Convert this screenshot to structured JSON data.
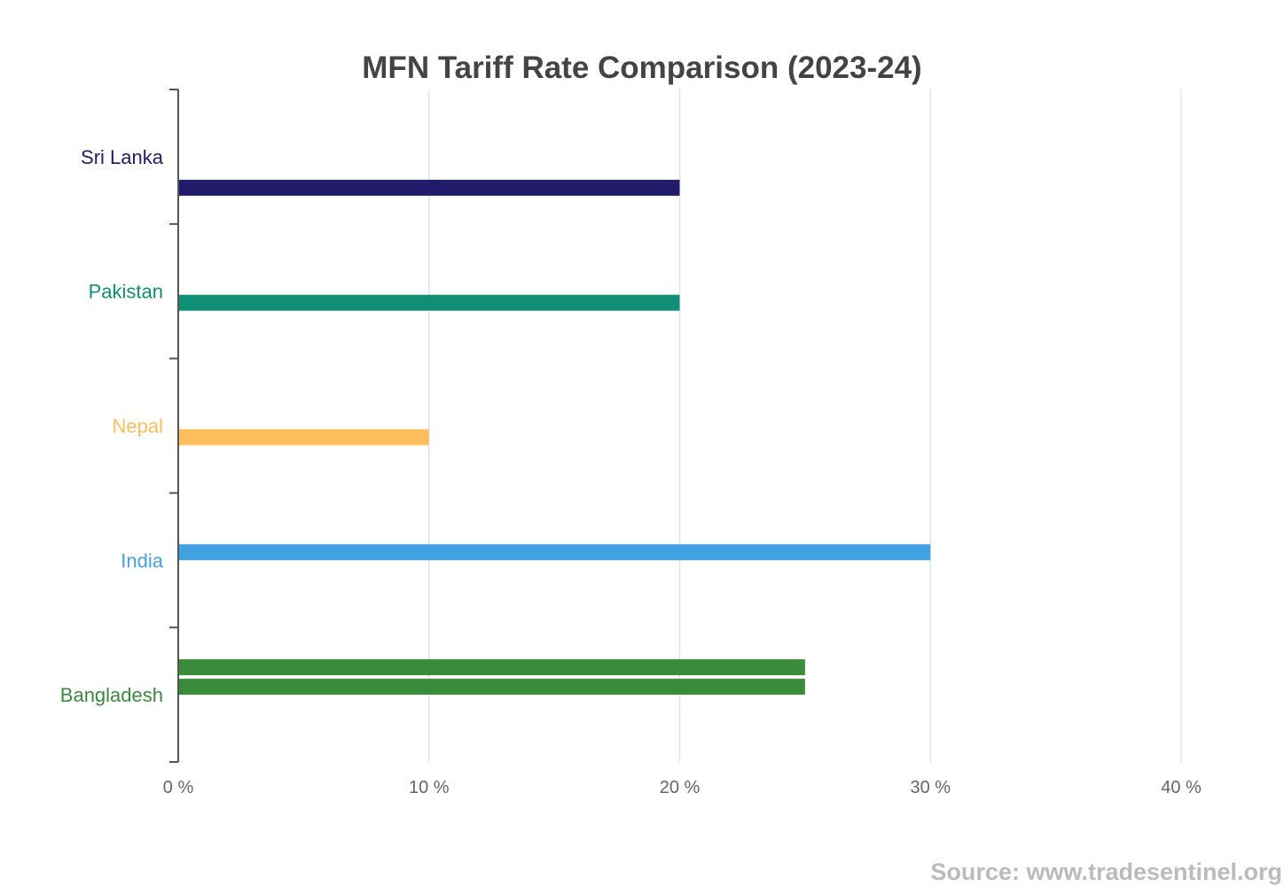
{
  "chart_data": {
    "type": "bar",
    "orientation": "horizontal",
    "title": "MFN Tariff Rate Comparison (2023-24)",
    "xlabel": "",
    "ylabel": "",
    "xlim": [
      0,
      40
    ],
    "x_ticks": [
      0,
      10,
      20,
      30,
      40
    ],
    "x_tick_suffix": " %",
    "grid": "vertical",
    "legend": "none",
    "categories": [
      {
        "label": "Sri Lanka",
        "color": "#211b6b",
        "bars": [
          {
            "value": 20,
            "slot": 3
          }
        ]
      },
      {
        "label": "Pakistan",
        "color": "#0f8f76",
        "bars": [
          {
            "value": 20,
            "slot": 2
          }
        ]
      },
      {
        "label": "Nepal",
        "color": "#ffbd5c",
        "bars": [
          {
            "value": 10,
            "slot": 2
          }
        ]
      },
      {
        "label": "India",
        "color": "#42a1e3",
        "bars": [
          {
            "value": 30,
            "slot": 1
          }
        ]
      },
      {
        "label": "Bangladesh",
        "color": "#3a8c3a",
        "bars": [
          {
            "value": 25,
            "slot": 0
          },
          {
            "value": 25,
            "slot": 1
          }
        ]
      }
    ]
  },
  "source": "Source: www.tradesentinel.org",
  "colors": {
    "title": "#444444",
    "axis": "#555555",
    "grid": "#dde3ee",
    "tick_label": "#666666",
    "source": "#bbbbbb"
  }
}
